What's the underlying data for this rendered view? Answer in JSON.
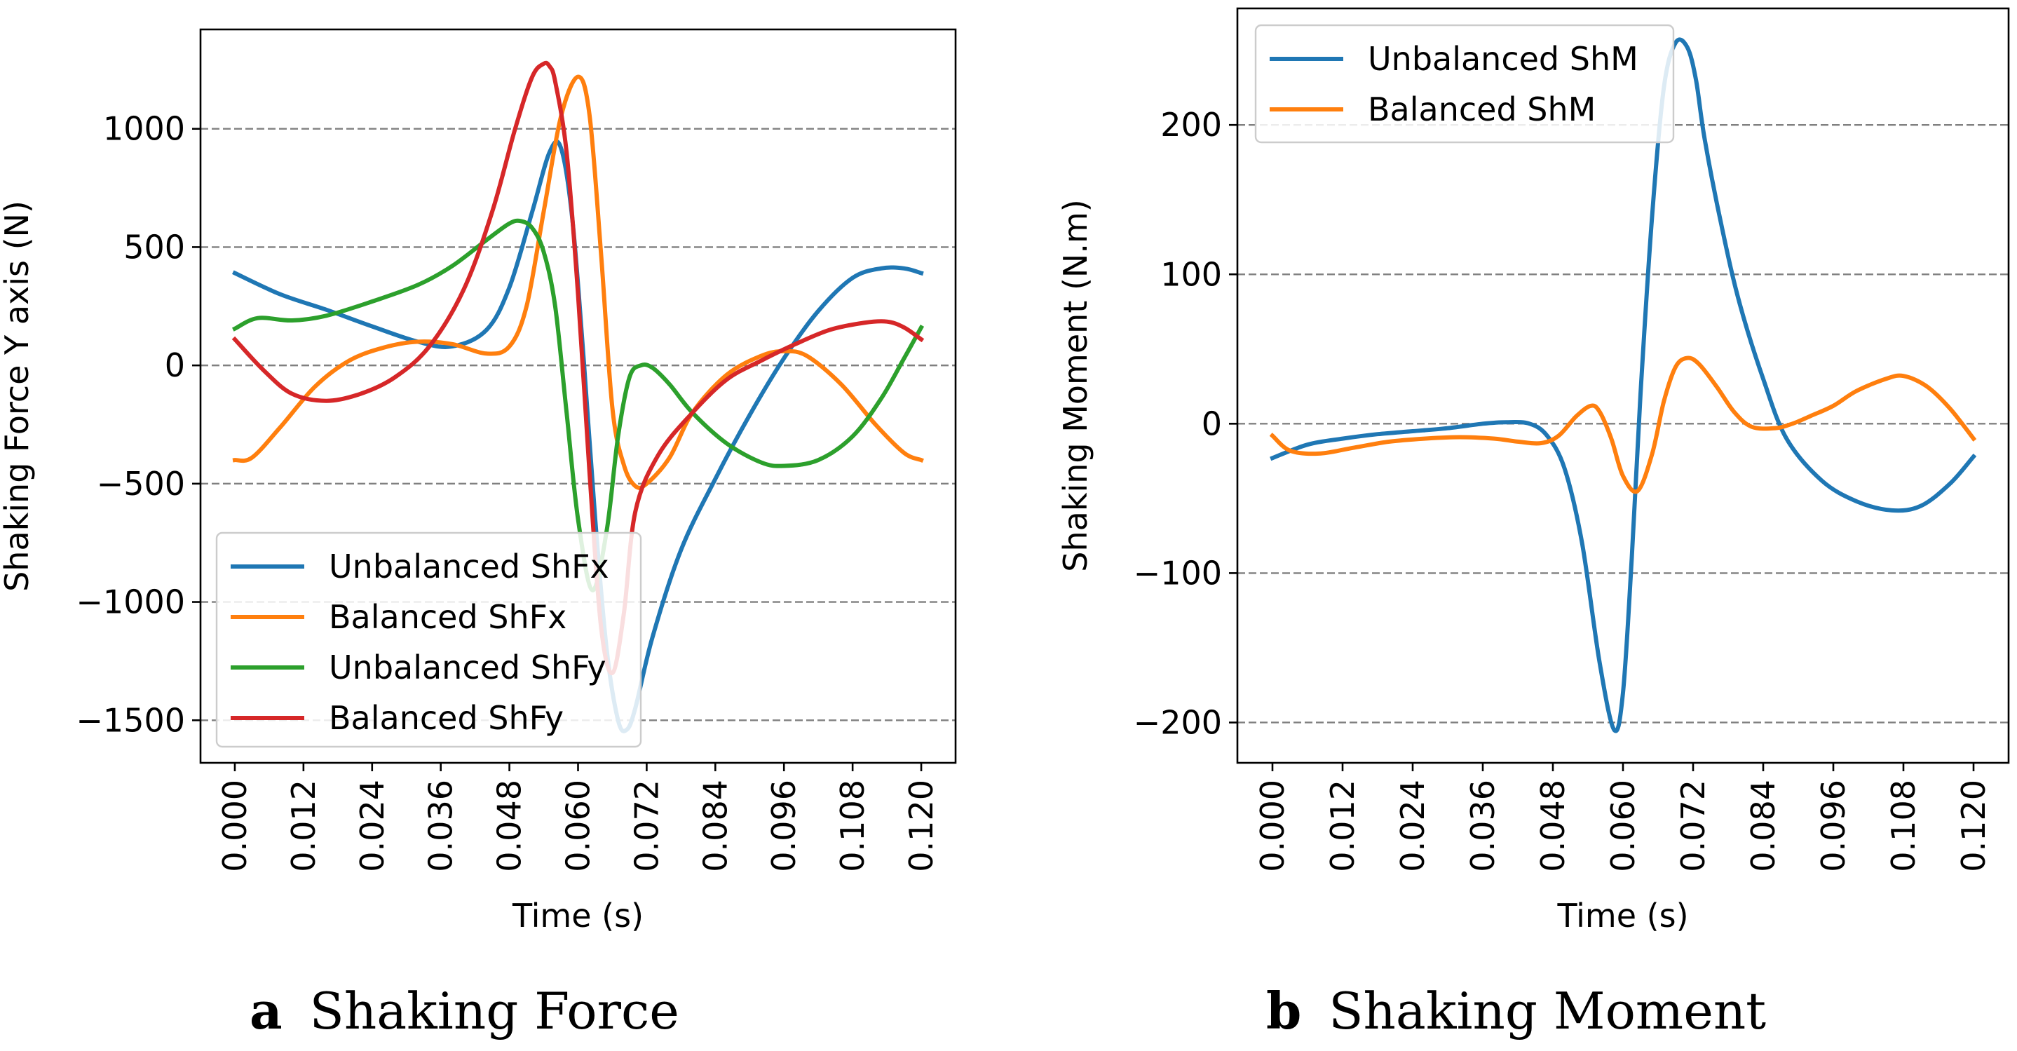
{
  "captions": [
    {
      "letter": "a",
      "text": "Shaking Force"
    },
    {
      "letter": "b",
      "text": "Shaking Moment"
    }
  ],
  "chart_data": [
    {
      "type": "line",
      "title": "",
      "xlabel": "Time (s)",
      "ylabel": "Shaking Force Y axis (N)",
      "xlim": [
        -0.006,
        0.126
      ],
      "ylim": [
        -1680,
        1420
      ],
      "xticks": [
        0.0,
        0.012,
        0.024,
        0.036,
        0.048,
        0.06,
        0.072,
        0.084,
        0.096,
        0.108,
        0.12
      ],
      "xtick_labels": [
        "0.000",
        "0.012",
        "0.024",
        "0.036",
        "0.048",
        "0.060",
        "0.072",
        "0.084",
        "0.096",
        "0.108",
        "0.120"
      ],
      "yticks": [
        -1500,
        -1000,
        -500,
        0,
        500,
        1000
      ],
      "ytick_labels": [
        "−1500",
        "−1000",
        "−500",
        "0",
        "500",
        "1000"
      ],
      "grid": "horizontal-dashed",
      "legend_position": "lower-left",
      "series": [
        {
          "name": "Unbalanced ShFx",
          "color": "#1f77b4",
          "x": [
            0,
            0.008,
            0.016,
            0.024,
            0.032,
            0.038,
            0.044,
            0.048,
            0.052,
            0.055,
            0.057,
            0.059,
            0.061,
            0.063,
            0.065,
            0.067,
            0.0685,
            0.07,
            0.073,
            0.078,
            0.084,
            0.09,
            0.096,
            0.102,
            0.108,
            0.113,
            0.117,
            0.12
          ],
          "y": [
            390,
            300,
            235,
            165,
            100,
            80,
            150,
            330,
            650,
            900,
            920,
            620,
            20,
            -650,
            -1200,
            -1500,
            -1540,
            -1450,
            -1150,
            -780,
            -480,
            -210,
            30,
            230,
            370,
            410,
            410,
            390
          ]
        },
        {
          "name": "Balanced ShFx",
          "color": "#ff7f0e",
          "x": [
            0,
            0.003,
            0.008,
            0.014,
            0.02,
            0.026,
            0.032,
            0.038,
            0.044,
            0.048,
            0.051,
            0.054,
            0.057,
            0.06,
            0.062,
            0.064,
            0.066,
            0.068,
            0.07,
            0.072,
            0.076,
            0.08,
            0.086,
            0.092,
            0.096,
            0.1,
            0.106,
            0.112,
            0.117,
            0.12
          ],
          "y": [
            -400,
            -390,
            -260,
            -90,
            20,
            75,
            100,
            90,
            50,
            80,
            250,
            650,
            1050,
            1220,
            1060,
            480,
            -180,
            -420,
            -510,
            -500,
            -390,
            -200,
            -40,
            40,
            60,
            40,
            -80,
            -250,
            -370,
            -400
          ]
        },
        {
          "name": "Unbalanced ShFy",
          "color": "#2ca02c",
          "x": [
            0,
            0.004,
            0.01,
            0.016,
            0.024,
            0.032,
            0.038,
            0.044,
            0.048,
            0.05,
            0.052,
            0.054,
            0.056,
            0.058,
            0.06,
            0.0625,
            0.065,
            0.067,
            0.069,
            0.071,
            0.073,
            0.076,
            0.08,
            0.086,
            0.092,
            0.096,
            0.102,
            0.108,
            0.113,
            0.117,
            0.12
          ],
          "y": [
            155,
            200,
            190,
            210,
            270,
            340,
            420,
            530,
            600,
            610,
            580,
            480,
            250,
            -200,
            -650,
            -950,
            -700,
            -300,
            -50,
            0,
            -10,
            -80,
            -200,
            -330,
            -410,
            -425,
            -400,
            -300,
            -140,
            30,
            160
          ]
        },
        {
          "name": "Balanced ShFy",
          "color": "#d62728",
          "x": [
            0,
            0.005,
            0.01,
            0.016,
            0.022,
            0.028,
            0.034,
            0.04,
            0.045,
            0.049,
            0.052,
            0.054,
            0.055,
            0.056,
            0.058,
            0.06,
            0.062,
            0.064,
            0.066,
            0.068,
            0.07,
            0.074,
            0.08,
            0.086,
            0.092,
            0.098,
            0.104,
            0.11,
            0.114,
            0.117,
            0.12
          ],
          "y": [
            110,
            -20,
            -120,
            -150,
            -120,
            -50,
            80,
            320,
            650,
            1000,
            1220,
            1275,
            1265,
            1200,
            900,
            300,
            -450,
            -1100,
            -1300,
            -1050,
            -620,
            -380,
            -200,
            -60,
            20,
            90,
            150,
            180,
            185,
            160,
            110
          ]
        }
      ]
    },
    {
      "type": "line",
      "title": "",
      "xlabel": "Time (s)",
      "ylabel": "Shaking Moment (N.m)",
      "xlim": [
        -0.006,
        0.126
      ],
      "ylim": [
        -227,
        278
      ],
      "xticks": [
        0.0,
        0.012,
        0.024,
        0.036,
        0.048,
        0.06,
        0.072,
        0.084,
        0.096,
        0.108,
        0.12
      ],
      "xtick_labels": [
        "0.000",
        "0.012",
        "0.024",
        "0.036",
        "0.048",
        "0.060",
        "0.072",
        "0.084",
        "0.096",
        "0.108",
        "0.120"
      ],
      "yticks": [
        -200,
        -100,
        0,
        100,
        200
      ],
      "ytick_labels": [
        "−200",
        "−100",
        "0",
        "100",
        "200"
      ],
      "grid": "horizontal-dashed",
      "legend_position": "upper-left",
      "series": [
        {
          "name": "Unbalanced ShM",
          "color": "#1f77b4",
          "x": [
            0,
            0.006,
            0.012,
            0.018,
            0.024,
            0.03,
            0.036,
            0.04,
            0.044,
            0.047,
            0.05,
            0.053,
            0.056,
            0.0585,
            0.06,
            0.0615,
            0.063,
            0.065,
            0.067,
            0.069,
            0.071,
            0.0725,
            0.074,
            0.077,
            0.08,
            0.084,
            0.088,
            0.094,
            0.1,
            0.106,
            0.111,
            0.116,
            0.12
          ],
          "y": [
            -23,
            -14,
            -10,
            -7,
            -5,
            -3,
            0,
            1,
            0,
            -8,
            -30,
            -80,
            -160,
            -205,
            -180,
            -90,
            20,
            140,
            225,
            255,
            252,
            230,
            190,
            130,
            80,
            30,
            -10,
            -38,
            -52,
            -58,
            -55,
            -40,
            -22
          ]
        },
        {
          "name": "Balanced ShM",
          "color": "#ff7f0e",
          "x": [
            0,
            0.003,
            0.008,
            0.014,
            0.02,
            0.026,
            0.032,
            0.038,
            0.042,
            0.046,
            0.049,
            0.052,
            0.0545,
            0.056,
            0.058,
            0.06,
            0.0625,
            0.065,
            0.067,
            0.069,
            0.071,
            0.073,
            0.076,
            0.079,
            0.082,
            0.086,
            0.089,
            0.092,
            0.096,
            0.1,
            0.105,
            0.108,
            0.112,
            0.116,
            0.12
          ],
          "y": [
            -8,
            -18,
            -20,
            -16,
            -12,
            -10,
            -9,
            -10,
            -12,
            -13,
            -8,
            5,
            12,
            8,
            -10,
            -35,
            -45,
            -20,
            15,
            38,
            44,
            40,
            25,
            8,
            -2,
            -3,
            0,
            5,
            12,
            22,
            30,
            32,
            25,
            10,
            -10
          ]
        }
      ]
    }
  ]
}
